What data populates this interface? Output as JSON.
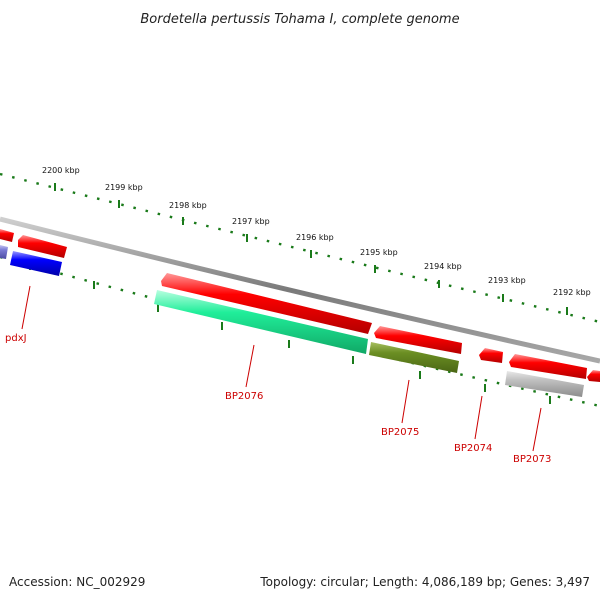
{
  "title": "Bordetella pertussis Tohama I, complete genome",
  "footer": {
    "accession": "Accession: NC_002929",
    "summary": "Topology: circular; Length: 4,086,189 bp; Genes: 3,497"
  },
  "scale": {
    "unit": "kbp",
    "labels": [
      "2200 kbp",
      "2199 kbp",
      "2198 kbp",
      "2197 kbp",
      "2196 kbp",
      "2195 kbp",
      "2194 kbp",
      "2193 kbp",
      "2192 kbp"
    ]
  },
  "gene_labels": [
    "pdxJ",
    "BP2076",
    "BP2075",
    "BP2074",
    "BP2073"
  ],
  "colors": {
    "backbone": "#888888",
    "tick": "#1a7a1a",
    "forward_gene": "#ee0000",
    "label": "#cc0000",
    "reverse_blue": "#0000ee",
    "reverse_blue_light": "#6f6fcc",
    "reverse_green": "#22ee99",
    "reverse_olive": "#6b8e23",
    "reverse_gray": "#b8b8b8"
  }
}
